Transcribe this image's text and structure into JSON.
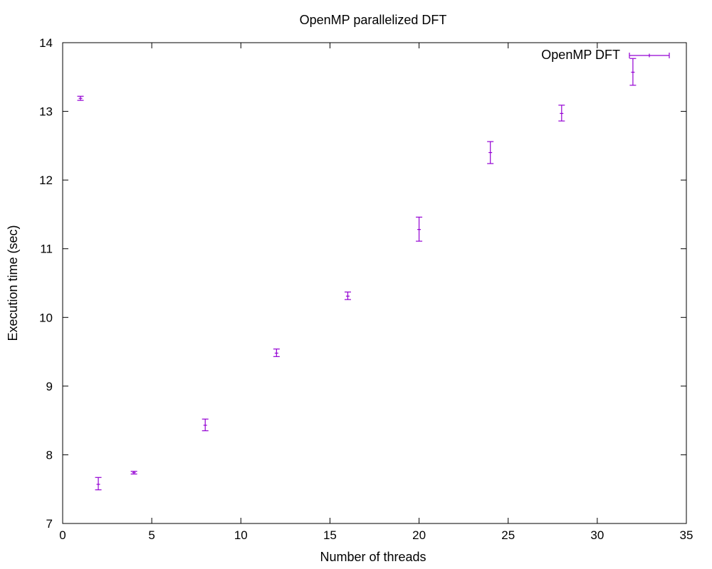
{
  "chart_data": {
    "type": "scatter",
    "title": "OpenMP parallelized DFT",
    "xlabel": "Number of threads",
    "ylabel": "Execution time (sec)",
    "xlim": [
      0,
      35
    ],
    "ylim": [
      7,
      14
    ],
    "xticks": [
      0,
      5,
      10,
      15,
      20,
      25,
      30,
      35
    ],
    "yticks": [
      7,
      8,
      9,
      10,
      11,
      12,
      13,
      14
    ],
    "grid": false,
    "legend_position": "top-right",
    "series": [
      {
        "name": "OpenMP DFT",
        "color": "#9400d3",
        "style": "yerrorbars",
        "points": [
          {
            "x": 1,
            "y": 13.19,
            "ylow": 13.16,
            "yhigh": 13.22
          },
          {
            "x": 2,
            "y": 7.57,
            "ylow": 7.49,
            "yhigh": 7.67
          },
          {
            "x": 4,
            "y": 7.74,
            "ylow": 7.72,
            "yhigh": 7.76
          },
          {
            "x": 8,
            "y": 8.43,
            "ylow": 8.35,
            "yhigh": 8.52
          },
          {
            "x": 12,
            "y": 9.48,
            "ylow": 9.43,
            "yhigh": 9.54
          },
          {
            "x": 16,
            "y": 10.31,
            "ylow": 10.26,
            "yhigh": 10.37
          },
          {
            "x": 20,
            "y": 11.28,
            "ylow": 11.11,
            "yhigh": 11.46
          },
          {
            "x": 24,
            "y": 12.4,
            "ylow": 12.24,
            "yhigh": 12.56
          },
          {
            "x": 28,
            "y": 12.97,
            "ylow": 12.86,
            "yhigh": 13.09
          },
          {
            "x": 32,
            "y": 13.57,
            "ylow": 13.38,
            "yhigh": 13.77
          }
        ]
      }
    ]
  }
}
